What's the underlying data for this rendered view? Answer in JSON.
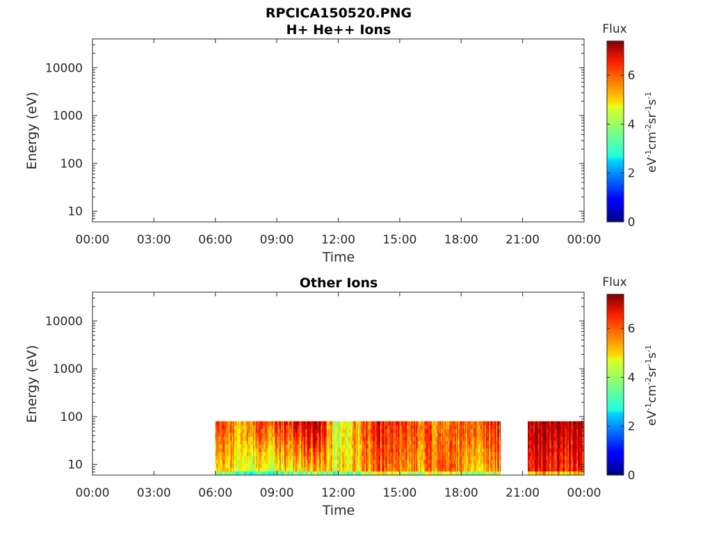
{
  "figure": {
    "title": "RPCICA150520.PNG"
  },
  "colors": {
    "axis": "#262626",
    "background": "#ffffff",
    "colormap": "jet"
  },
  "chart_data": [
    {
      "type": "heatmap",
      "title": "H+ He++ Ions",
      "xlabel": "Time",
      "ylabel": "Energy (eV)",
      "x_ticks": [
        "00:00",
        "03:00",
        "06:00",
        "09:00",
        "12:00",
        "15:00",
        "18:00",
        "21:00",
        "00:00"
      ],
      "y_ticks": [
        "10",
        "100",
        "1000",
        "10000"
      ],
      "yscale": "log",
      "ylim": [
        6,
        40000
      ],
      "xlim_hours": [
        0,
        24
      ],
      "data_segments": [],
      "colorbar": {
        "title": "Flux",
        "label": "eV-1cm-2sr-1s-1",
        "label_parts": [
          "eV",
          "-1",
          "cm",
          "-2",
          "sr",
          "-1",
          "s",
          "-1"
        ],
        "ticks": [
          "0",
          "2",
          "4",
          "6"
        ],
        "range": [
          0,
          7.4
        ]
      }
    },
    {
      "type": "heatmap",
      "title": "Other Ions",
      "xlabel": "Time",
      "ylabel": "Energy (eV)",
      "x_ticks": [
        "00:00",
        "03:00",
        "06:00",
        "09:00",
        "12:00",
        "15:00",
        "18:00",
        "21:00",
        "00:00"
      ],
      "y_ticks": [
        "10",
        "100",
        "1000",
        "10000"
      ],
      "yscale": "log",
      "ylim": [
        6,
        40000
      ],
      "xlim_hours": [
        0,
        24
      ],
      "energy_range_eV": [
        6,
        80
      ],
      "data_segments": [
        {
          "start": "06:00",
          "end": "19:55"
        },
        {
          "start": "21:15",
          "end": "24:00"
        }
      ],
      "flux_profile": [
        {
          "time": "06:00",
          "flux_high": 6.8,
          "flux_low": 5.5
        },
        {
          "time": "07:00",
          "flux_high": 5.2,
          "flux_low": 4.5
        },
        {
          "time": "08:00",
          "flux_high": 5.8,
          "flux_low": 4.2
        },
        {
          "time": "09:00",
          "flux_high": 6.0,
          "flux_low": 4.4
        },
        {
          "time": "10:00",
          "flux_high": 6.5,
          "flux_low": 4.8
        },
        {
          "time": "11:00",
          "flux_high": 7.0,
          "flux_low": 5.0
        },
        {
          "time": "12:00",
          "flux_high": 4.0,
          "flux_low": 4.6
        },
        {
          "time": "13:00",
          "flux_high": 5.5,
          "flux_low": 5.0
        },
        {
          "time": "14:00",
          "flux_high": 6.4,
          "flux_low": 5.8
        },
        {
          "time": "15:00",
          "flux_high": 6.2,
          "flux_low": 5.6
        },
        {
          "time": "16:00",
          "flux_high": 6.0,
          "flux_low": 5.4
        },
        {
          "time": "17:00",
          "flux_high": 5.4,
          "flux_low": 5.8
        },
        {
          "time": "18:00",
          "flux_high": 5.8,
          "flux_low": 5.2
        },
        {
          "time": "19:00",
          "flux_high": 6.0,
          "flux_low": 5.0
        },
        {
          "time": "21:15",
          "flux_high": 6.8,
          "flux_low": 6.2
        },
        {
          "time": "22:00",
          "flux_high": 7.1,
          "flux_low": 6.4
        },
        {
          "time": "23:00",
          "flux_high": 7.0,
          "flux_low": 6.0
        },
        {
          "time": "24:00",
          "flux_high": 6.6,
          "flux_low": 6.2
        }
      ],
      "colorbar": {
        "title": "Flux",
        "label": "eV-1cm-2sr-1s-1",
        "label_parts": [
          "eV",
          "-1",
          "cm",
          "-2",
          "sr",
          "-1",
          "s",
          "-1"
        ],
        "ticks": [
          "0",
          "2",
          "4",
          "6"
        ],
        "range": [
          0,
          7.4
        ]
      }
    }
  ]
}
